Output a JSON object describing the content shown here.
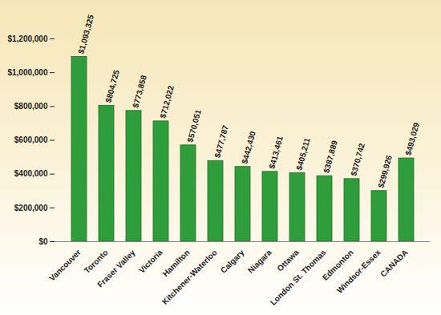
{
  "chart_data": {
    "type": "bar",
    "categories": [
      "Vancouver",
      "Toronto",
      "Fraser Valley",
      "Victoria",
      "Hamilton",
      "Kitchener-Waterloo",
      "Calgary",
      "Niagara",
      "Ottawa",
      "London St. Thomas",
      "Edmonton",
      "Windsor-Essex",
      "CANADA"
    ],
    "values": [
      1093325,
      804725,
      773858,
      712022,
      570051,
      477787,
      442430,
      413461,
      405211,
      387889,
      370742,
      299926,
      493029
    ],
    "value_labels": [
      "$1,093,325",
      "$804,725",
      "$773,858",
      "$712,022",
      "$570,051",
      "$477,787",
      "$442,430",
      "$413,461",
      "$405,211",
      "$387,889",
      "$370,742",
      "$299,926",
      "$493,029"
    ],
    "color": "#2e9e3a",
    "ylim": [
      0,
      1200000
    ],
    "yticks": [
      {
        "value": 0,
        "label": "$0"
      },
      {
        "value": 200000,
        "label": "$200,000"
      },
      {
        "value": 400000,
        "label": "$400,000"
      },
      {
        "value": 600000,
        "label": "$600,000"
      },
      {
        "value": 800000,
        "label": "$800,000"
      },
      {
        "value": 1000000,
        "label": "$1,000,000"
      },
      {
        "value": 1200000,
        "label": "$1,200,000"
      }
    ],
    "grid": false,
    "data_labels": true
  }
}
